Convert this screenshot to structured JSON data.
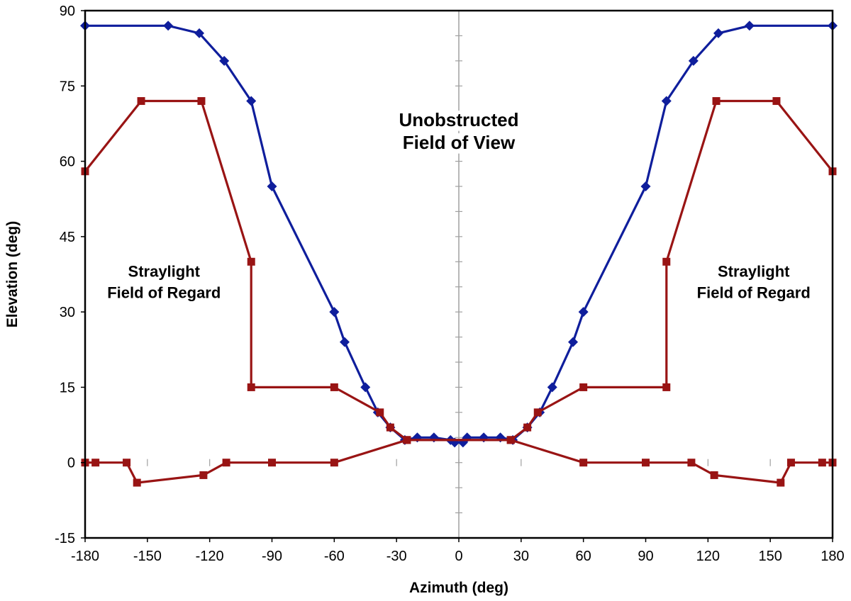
{
  "chart_data": {
    "type": "line",
    "xlabel": "Azimuth (deg)",
    "ylabel": "Elevation (deg)",
    "xlim": [
      -180,
      180
    ],
    "ylim": [
      -15,
      90
    ],
    "xticks": [
      -180,
      -150,
      -120,
      -90,
      -60,
      -30,
      0,
      30,
      60,
      90,
      120,
      150,
      180
    ],
    "yticks": [
      -15,
      0,
      15,
      30,
      45,
      60,
      75,
      90
    ],
    "grid": false,
    "annotations": [
      {
        "id": "fov",
        "lines": [
          "Unobstructed",
          "Field of View"
        ],
        "x": 0,
        "y": 66
      },
      {
        "id": "regard-left",
        "lines": [
          "Straylight",
          "Field of Regard"
        ],
        "x": -142,
        "y": 36
      },
      {
        "id": "regard-right",
        "lines": [
          "Straylight",
          "Field of Regard"
        ],
        "x": 142,
        "y": 36
      }
    ],
    "series": [
      {
        "name": "Unobstructed Field of View",
        "color": "#0f1e9c",
        "marker": "diamond",
        "x": [
          -180,
          -140,
          -125,
          -113,
          -100,
          -90,
          -60,
          -55,
          -45,
          -39,
          -33,
          -26,
          -20,
          -12,
          -4,
          -2,
          2,
          4,
          12,
          20,
          26,
          33,
          39,
          45,
          55,
          60,
          90,
          100,
          113,
          125,
          140,
          180
        ],
        "y": [
          87,
          87,
          85.5,
          80,
          72,
          55,
          30,
          24,
          15,
          10,
          7,
          4.5,
          5,
          5,
          4.5,
          4,
          4,
          5,
          5,
          5,
          4.5,
          7,
          10,
          15,
          24,
          30,
          55,
          72,
          80,
          85.5,
          87,
          87
        ]
      },
      {
        "name": "Straylight Field of Regard (upper)",
        "color": "#991414",
        "marker": "square",
        "x": [
          -180,
          -153,
          -124,
          -100,
          -100,
          -60,
          -38,
          -33,
          -25,
          25,
          33,
          38,
          60,
          100,
          100,
          124,
          153,
          180
        ],
        "y": [
          58,
          72,
          72,
          40,
          15,
          15,
          10,
          7,
          4.5,
          4.5,
          7,
          10,
          15,
          15,
          40,
          72,
          72,
          58
        ]
      },
      {
        "name": "Straylight Field of Regard (lower)",
        "color": "#991414",
        "marker": "square",
        "x": [
          -180,
          -175,
          -160,
          -155,
          -123,
          -112,
          -90,
          -60,
          -25,
          25,
          60,
          90,
          112,
          123,
          155,
          160,
          175,
          180
        ],
        "y": [
          0,
          0,
          0,
          -4,
          -2.5,
          0,
          0,
          0,
          4.5,
          4.5,
          0,
          0,
          0,
          -2.5,
          -4,
          0,
          0,
          0
        ]
      }
    ]
  }
}
